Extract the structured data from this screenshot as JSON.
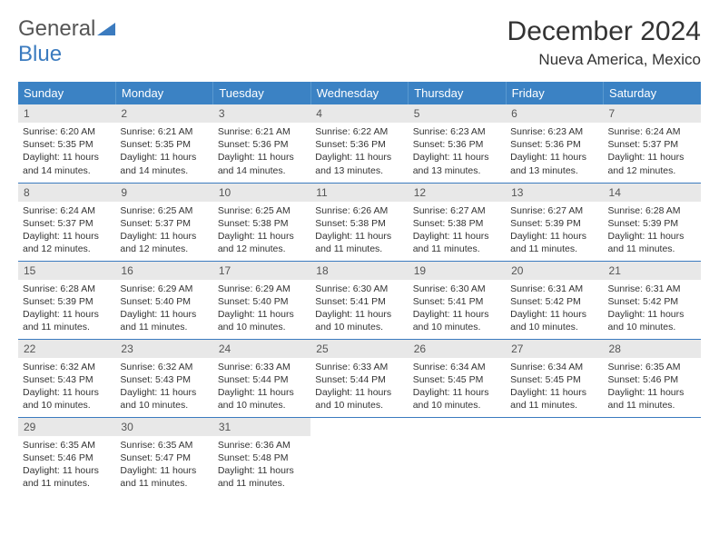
{
  "logo": {
    "general": "General",
    "blue": "Blue"
  },
  "title": "December 2024",
  "location": "Nueva America, Mexico",
  "colors": {
    "header_bg": "#3b82c4",
    "header_border": "#5a99d0",
    "row_border": "#3b7bbf",
    "daynum_bg": "#e8e8e8",
    "logo_blue": "#3b7bbf",
    "text": "#333333",
    "bg": "#ffffff"
  },
  "weekdays": [
    "Sunday",
    "Monday",
    "Tuesday",
    "Wednesday",
    "Thursday",
    "Friday",
    "Saturday"
  ],
  "weeks": [
    [
      {
        "d": "1",
        "sr": "6:20 AM",
        "ss": "5:35 PM",
        "dl": "11 hours and 14 minutes."
      },
      {
        "d": "2",
        "sr": "6:21 AM",
        "ss": "5:35 PM",
        "dl": "11 hours and 14 minutes."
      },
      {
        "d": "3",
        "sr": "6:21 AM",
        "ss": "5:36 PM",
        "dl": "11 hours and 14 minutes."
      },
      {
        "d": "4",
        "sr": "6:22 AM",
        "ss": "5:36 PM",
        "dl": "11 hours and 13 minutes."
      },
      {
        "d": "5",
        "sr": "6:23 AM",
        "ss": "5:36 PM",
        "dl": "11 hours and 13 minutes."
      },
      {
        "d": "6",
        "sr": "6:23 AM",
        "ss": "5:36 PM",
        "dl": "11 hours and 13 minutes."
      },
      {
        "d": "7",
        "sr": "6:24 AM",
        "ss": "5:37 PM",
        "dl": "11 hours and 12 minutes."
      }
    ],
    [
      {
        "d": "8",
        "sr": "6:24 AM",
        "ss": "5:37 PM",
        "dl": "11 hours and 12 minutes."
      },
      {
        "d": "9",
        "sr": "6:25 AM",
        "ss": "5:37 PM",
        "dl": "11 hours and 12 minutes."
      },
      {
        "d": "10",
        "sr": "6:25 AM",
        "ss": "5:38 PM",
        "dl": "11 hours and 12 minutes."
      },
      {
        "d": "11",
        "sr": "6:26 AM",
        "ss": "5:38 PM",
        "dl": "11 hours and 11 minutes."
      },
      {
        "d": "12",
        "sr": "6:27 AM",
        "ss": "5:38 PM",
        "dl": "11 hours and 11 minutes."
      },
      {
        "d": "13",
        "sr": "6:27 AM",
        "ss": "5:39 PM",
        "dl": "11 hours and 11 minutes."
      },
      {
        "d": "14",
        "sr": "6:28 AM",
        "ss": "5:39 PM",
        "dl": "11 hours and 11 minutes."
      }
    ],
    [
      {
        "d": "15",
        "sr": "6:28 AM",
        "ss": "5:39 PM",
        "dl": "11 hours and 11 minutes."
      },
      {
        "d": "16",
        "sr": "6:29 AM",
        "ss": "5:40 PM",
        "dl": "11 hours and 11 minutes."
      },
      {
        "d": "17",
        "sr": "6:29 AM",
        "ss": "5:40 PM",
        "dl": "11 hours and 10 minutes."
      },
      {
        "d": "18",
        "sr": "6:30 AM",
        "ss": "5:41 PM",
        "dl": "11 hours and 10 minutes."
      },
      {
        "d": "19",
        "sr": "6:30 AM",
        "ss": "5:41 PM",
        "dl": "11 hours and 10 minutes."
      },
      {
        "d": "20",
        "sr": "6:31 AM",
        "ss": "5:42 PM",
        "dl": "11 hours and 10 minutes."
      },
      {
        "d": "21",
        "sr": "6:31 AM",
        "ss": "5:42 PM",
        "dl": "11 hours and 10 minutes."
      }
    ],
    [
      {
        "d": "22",
        "sr": "6:32 AM",
        "ss": "5:43 PM",
        "dl": "11 hours and 10 minutes."
      },
      {
        "d": "23",
        "sr": "6:32 AM",
        "ss": "5:43 PM",
        "dl": "11 hours and 10 minutes."
      },
      {
        "d": "24",
        "sr": "6:33 AM",
        "ss": "5:44 PM",
        "dl": "11 hours and 10 minutes."
      },
      {
        "d": "25",
        "sr": "6:33 AM",
        "ss": "5:44 PM",
        "dl": "11 hours and 10 minutes."
      },
      {
        "d": "26",
        "sr": "6:34 AM",
        "ss": "5:45 PM",
        "dl": "11 hours and 10 minutes."
      },
      {
        "d": "27",
        "sr": "6:34 AM",
        "ss": "5:45 PM",
        "dl": "11 hours and 11 minutes."
      },
      {
        "d": "28",
        "sr": "6:35 AM",
        "ss": "5:46 PM",
        "dl": "11 hours and 11 minutes."
      }
    ],
    [
      {
        "d": "29",
        "sr": "6:35 AM",
        "ss": "5:46 PM",
        "dl": "11 hours and 11 minutes."
      },
      {
        "d": "30",
        "sr": "6:35 AM",
        "ss": "5:47 PM",
        "dl": "11 hours and 11 minutes."
      },
      {
        "d": "31",
        "sr": "6:36 AM",
        "ss": "5:48 PM",
        "dl": "11 hours and 11 minutes."
      },
      null,
      null,
      null,
      null
    ]
  ],
  "labels": {
    "sunrise": "Sunrise:",
    "sunset": "Sunset:",
    "daylight": "Daylight:"
  }
}
